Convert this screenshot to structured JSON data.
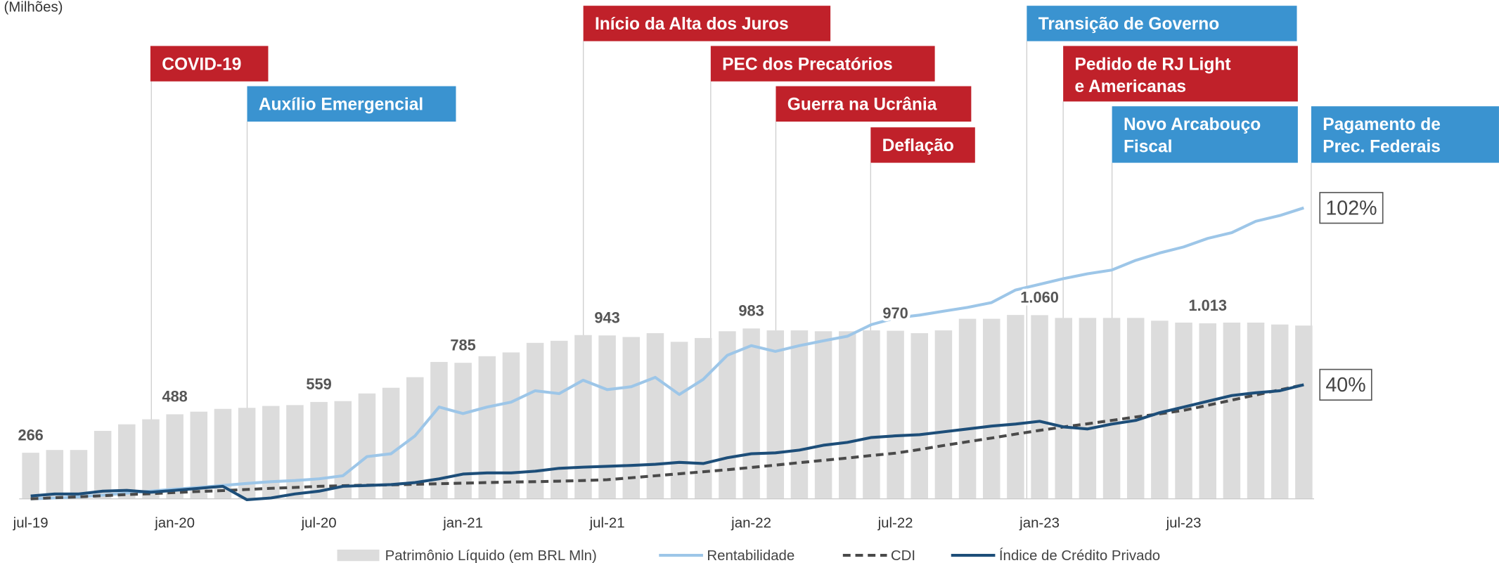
{
  "chart_data": {
    "type": "bar",
    "y_label": "(Milhões)",
    "categories": [
      "jul-19",
      null,
      null,
      null,
      null,
      null,
      "jan-20",
      null,
      null,
      null,
      null,
      null,
      "jul-20",
      null,
      null,
      null,
      null,
      null,
      "jan-21",
      null,
      null,
      null,
      null,
      null,
      "jul-21",
      null,
      null,
      null,
      null,
      null,
      "jan-22",
      null,
      null,
      null,
      null,
      null,
      "jul-22",
      null,
      null,
      null,
      null,
      null,
      "jan-23",
      null,
      null,
      null,
      null,
      null,
      "jul-23",
      null,
      null,
      null,
      null,
      null
    ],
    "ylim": [
      0,
      2000
    ],
    "y2lim": [
      0,
      121.5
    ],
    "series": [
      {
        "name": "Patrimônio Líquido (em BRL Mln)",
        "type": "bar",
        "color": "#dcdcdc",
        "values": [
          266,
          282,
          282,
          392,
          430,
          459,
          488,
          503,
          519,
          525,
          536,
          541,
          559,
          564,
          608,
          641,
          702,
          790,
          785,
          823,
          845,
          900,
          912,
          945,
          943,
          934,
          956,
          906,
          928,
          967,
          983,
          972,
          972,
          967,
          967,
          972,
          970,
          956,
          972,
          1039,
          1039,
          1061,
          1060,
          1044,
          1044,
          1044,
          1044,
          1028,
          1017,
          1013,
          1017,
          1017,
          1006,
          1000
        ],
        "value_labels": [
          "266",
          null,
          null,
          null,
          null,
          null,
          "488",
          null,
          null,
          null,
          null,
          null,
          "559",
          null,
          null,
          null,
          null,
          null,
          "785",
          null,
          null,
          null,
          null,
          null,
          "943",
          null,
          null,
          null,
          null,
          null,
          "983",
          null,
          null,
          null,
          null,
          null,
          "970",
          null,
          null,
          null,
          null,
          null,
          "1.060",
          null,
          null,
          null,
          null,
          null,
          null,
          "1.013",
          null,
          null,
          null,
          null
        ]
      },
      {
        "name": "Rentabilidade",
        "type": "line",
        "axis": "y2",
        "color": "#9dc6e8",
        "line_style": "solid",
        "values": [
          0,
          0.3,
          0.7,
          1.3,
          2,
          2.7,
          3.4,
          4,
          4.7,
          5.4,
          6,
          6.4,
          7,
          8.1,
          14.8,
          15.8,
          22.1,
          32.2,
          29.9,
          32.2,
          33.9,
          37.9,
          36.9,
          41.6,
          38.3,
          39.3,
          42.6,
          36.6,
          41.9,
          50.3,
          53.7,
          51.7,
          53.7,
          55.4,
          57,
          61.1,
          63.4,
          64.4,
          65.8,
          67.1,
          68.8,
          73.2,
          75.2,
          77.2,
          78.9,
          80.2,
          83.6,
          86.2,
          88.3,
          91.3,
          93.3,
          97.3,
          99.3,
          102
        ],
        "value_labels": [
          null,
          null,
          null,
          null,
          null,
          null,
          null,
          null,
          null,
          null,
          null,
          null,
          null,
          null,
          null,
          null,
          null,
          null,
          null,
          null,
          null,
          null,
          null,
          null,
          null,
          null,
          null,
          null,
          null,
          null,
          null,
          null,
          null,
          null,
          null,
          null,
          null,
          null,
          null,
          null,
          null,
          null,
          null,
          null,
          null,
          null,
          null,
          null,
          null,
          null,
          null,
          null,
          null,
          "102%"
        ]
      },
      {
        "name": "CDI",
        "type": "line",
        "axis": "y2",
        "color": "#4a4a4a",
        "line_style": "dashed",
        "values": [
          0,
          0.4,
          0.7,
          1.1,
          1.5,
          1.8,
          2.2,
          2.6,
          2.9,
          3.3,
          3.7,
          4,
          4.4,
          4.6,
          4.8,
          4.9,
          5.1,
          5.3,
          5.5,
          5.7,
          5.9,
          6.0,
          6.2,
          6.4,
          6.7,
          7.4,
          8.1,
          8.8,
          9.5,
          10.2,
          11,
          11.8,
          12.7,
          13.5,
          14.3,
          15.2,
          16,
          17.3,
          18.7,
          20,
          21.3,
          22.7,
          24,
          25.2,
          26.3,
          27.5,
          28.7,
          29.8,
          31,
          32.8,
          34.6,
          36.4,
          38.2,
          40
        ]
      },
      {
        "name": "Índice de Crédito Privado",
        "type": "line",
        "axis": "y2",
        "color": "#1d4e79",
        "line_style": "solid",
        "values": [
          1,
          1.7,
          1.7,
          2.7,
          3,
          2.3,
          3,
          3.7,
          4.4,
          -0.3,
          0.3,
          1.7,
          2.7,
          4.4,
          4.7,
          5,
          5.7,
          7,
          8.7,
          9.1,
          9.1,
          9.7,
          10.7,
          11.1,
          11.4,
          11.7,
          12.1,
          12.8,
          12.4,
          14.4,
          15.8,
          16.1,
          17.1,
          18.8,
          19.8,
          21.5,
          22.1,
          22.5,
          23.5,
          24.5,
          25.5,
          26.2,
          27.2,
          25.2,
          24.5,
          26.2,
          27.5,
          30.2,
          32.2,
          34.2,
          36.2,
          37.2,
          37.9,
          40
        ],
        "value_labels": [
          null,
          null,
          null,
          null,
          null,
          null,
          null,
          null,
          null,
          null,
          null,
          null,
          null,
          null,
          null,
          null,
          null,
          null,
          null,
          null,
          null,
          null,
          null,
          null,
          null,
          null,
          null,
          null,
          null,
          null,
          null,
          null,
          null,
          null,
          null,
          null,
          null,
          null,
          null,
          null,
          null,
          null,
          null,
          null,
          null,
          null,
          null,
          null,
          null,
          null,
          null,
          null,
          null,
          "40%"
        ]
      }
    ],
    "events": [
      {
        "label": [
          "COVID-19"
        ],
        "color": "#c0212a"
      },
      {
        "label": [
          "Auxílio Emergencial"
        ],
        "color": "#3a93d0"
      },
      {
        "label": [
          "Início da Alta dos Juros"
        ],
        "color": "#c0212a"
      },
      {
        "label": [
          "PEC dos Precatórios"
        ],
        "color": "#c0212a"
      },
      {
        "label": [
          "Guerra na Ucrânia"
        ],
        "color": "#c0212a"
      },
      {
        "label": [
          "Deflação"
        ],
        "color": "#c0212a"
      },
      {
        "label": [
          "Transição de Governo"
        ],
        "color": "#3a93d0"
      },
      {
        "label": [
          "Pedido de RJ Light",
          "e Americanas"
        ],
        "color": "#c0212a"
      },
      {
        "label": [
          "Novo Arcabouço",
          "Fiscal"
        ],
        "color": "#3a93d0"
      },
      {
        "label": [
          "Pagamento de",
          "Prec. Federais"
        ],
        "color": "#3a93d0"
      }
    ],
    "legend": true
  }
}
